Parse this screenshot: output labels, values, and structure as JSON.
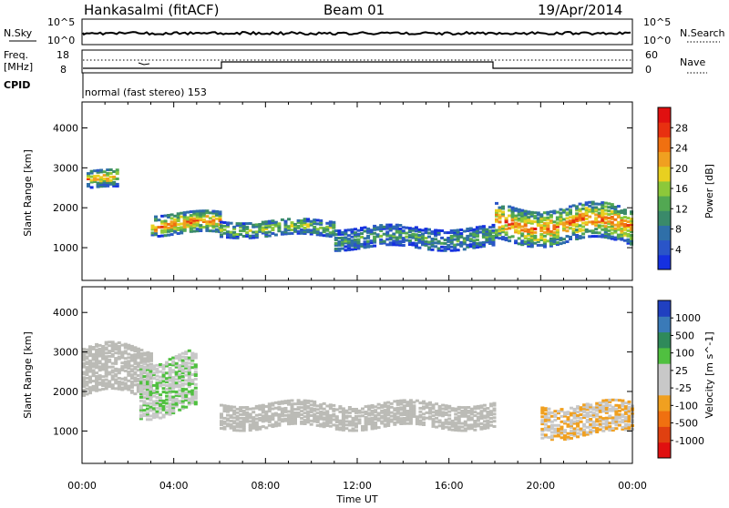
{
  "header": {
    "station": "Hankasalmi (fitACF)",
    "beam": "Beam 01",
    "date": "19/Apr/2014"
  },
  "status": {
    "nsky_label": "N.Sky",
    "nsky_top": "10^5",
    "nsky_bottom": "10^0",
    "nsearch_label": "N.Search",
    "nsearch_top": "10^5",
    "nsearch_bottom": "10^0",
    "freq_label": "Freq.",
    "freq_unit": "[MHz]",
    "freq_top": "18",
    "freq_bottom": "8",
    "nave_label": "Nave",
    "nave_top": "60",
    "nave_bottom": "0",
    "cpid_label": "CPID",
    "cpid_text": "normal (fast stereo) 153"
  },
  "colors": {
    "power": [
      "#1530e0",
      "#2a55c8",
      "#2f6fa8",
      "#3a8a6a",
      "#52a852",
      "#8cc83a",
      "#e8d020",
      "#f0a020",
      "#f07010",
      "#e83010",
      "#e01010"
    ],
    "velocity": [
      "#2040c0",
      "#3a7ab8",
      "#2f8a5a",
      "#50c040",
      "#c8c8c8",
      "#c8c8c8",
      "#f0a020",
      "#f07010",
      "#e04010",
      "#e01010"
    ],
    "ground_scatter": "#bbbbb6"
  },
  "chart_data": [
    {
      "type": "heatmap",
      "title": "Power",
      "xlabel": "",
      "ylabel": "Slant Range [km]",
      "x_ticks": [
        "00:00",
        "04:00",
        "08:00",
        "12:00",
        "16:00",
        "20:00",
        "00:00"
      ],
      "y_ticks": [
        "1000",
        "2000",
        "3000",
        "4000"
      ],
      "xlim": [
        0,
        24
      ],
      "ylim": [
        180,
        4650
      ],
      "colorbar_label": "Power [dB]",
      "colorbar_ticks": [
        "4",
        "8",
        "12",
        "16",
        "20",
        "24",
        "28"
      ],
      "echo_bands": [
        {
          "x": [
            0.2,
            1.5
          ],
          "y_center": 2700,
          "y_halfwidth": 220,
          "level": 0.7
        },
        {
          "x": [
            3.0,
            6.0
          ],
          "y_center": 1600,
          "y_halfwidth": 250,
          "level": 0.8
        },
        {
          "x": [
            6.0,
            11.0
          ],
          "y_center": 1500,
          "y_halfwidth": 200,
          "level": 0.5
        },
        {
          "x": [
            11.0,
            18.0
          ],
          "y_center": 1250,
          "y_halfwidth": 250,
          "level": 0.35
        },
        {
          "x": [
            18.0,
            24.0
          ],
          "y_center": 1600,
          "y_halfwidth": 450,
          "level": 0.8
        }
      ]
    },
    {
      "type": "heatmap",
      "title": "Velocity",
      "xlabel": "Time UT",
      "ylabel": "Slant Range [km]",
      "x_ticks": [
        "00:00",
        "04:00",
        "08:00",
        "12:00",
        "16:00",
        "20:00",
        "00:00"
      ],
      "y_ticks": [
        "1000",
        "2000",
        "3000",
        "4000"
      ],
      "xlim": [
        0,
        24
      ],
      "ylim": [
        180,
        4650
      ],
      "colorbar_label": "Velocity [m s^-1]",
      "colorbar_ticks": [
        "1000",
        "500",
        "100",
        "25",
        "-25",
        "-100",
        "-500",
        "-1000"
      ],
      "echo_bands": [
        {
          "x": [
            0.0,
            3.0
          ],
          "y_center": 2500,
          "y_halfwidth": 600,
          "value": 0
        },
        {
          "x": [
            2.5,
            5.0
          ],
          "y_center": 2200,
          "y_halfwidth": 700,
          "value": 150
        },
        {
          "x": [
            6.0,
            18.0
          ],
          "y_center": 1400,
          "y_halfwidth": 300,
          "value": 0
        },
        {
          "x": [
            20.0,
            24.0
          ],
          "y_center": 1300,
          "y_halfwidth": 400,
          "value": -200
        }
      ]
    }
  ]
}
